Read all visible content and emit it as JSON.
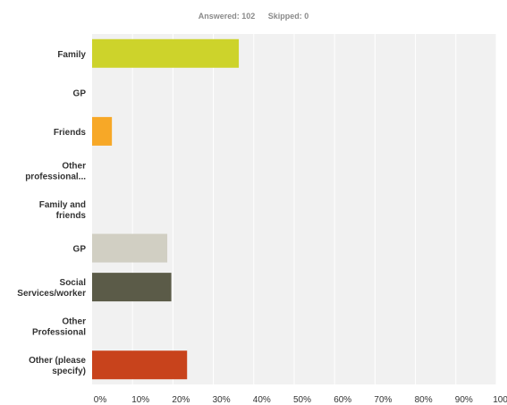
{
  "summary": {
    "answered_label": "Answered: 102",
    "skipped_label": "Skipped: 0"
  },
  "chart_data": {
    "type": "bar",
    "orientation": "horizontal",
    "categories": [
      [
        "Family"
      ],
      [
        "GP"
      ],
      [
        "Friends"
      ],
      [
        "Other",
        "professional..."
      ],
      [
        "Family and",
        "friends"
      ],
      [
        "GP"
      ],
      [
        "Social",
        "Services/worker"
      ],
      [
        "Other",
        "Professional"
      ],
      [
        "Other (please",
        "specify)"
      ]
    ],
    "values": [
      36.3,
      0,
      4.9,
      0,
      0,
      18.6,
      19.6,
      0,
      23.5
    ],
    "colors": [
      "#cdd32b",
      "#cdd32b",
      "#f7a827",
      "#cdd32b",
      "#cdd32b",
      "#d1cfc3",
      "#5b5b48",
      "#cdd32b",
      "#c8431c"
    ],
    "xlim": [
      0,
      100
    ],
    "x_ticks": [
      "0%",
      "10%",
      "20%",
      "30%",
      "40%",
      "50%",
      "60%",
      "70%",
      "80%",
      "90%",
      "100%"
    ],
    "grid": true,
    "plot_background": "#f1f1f1",
    "grid_color": "#ffffff"
  }
}
